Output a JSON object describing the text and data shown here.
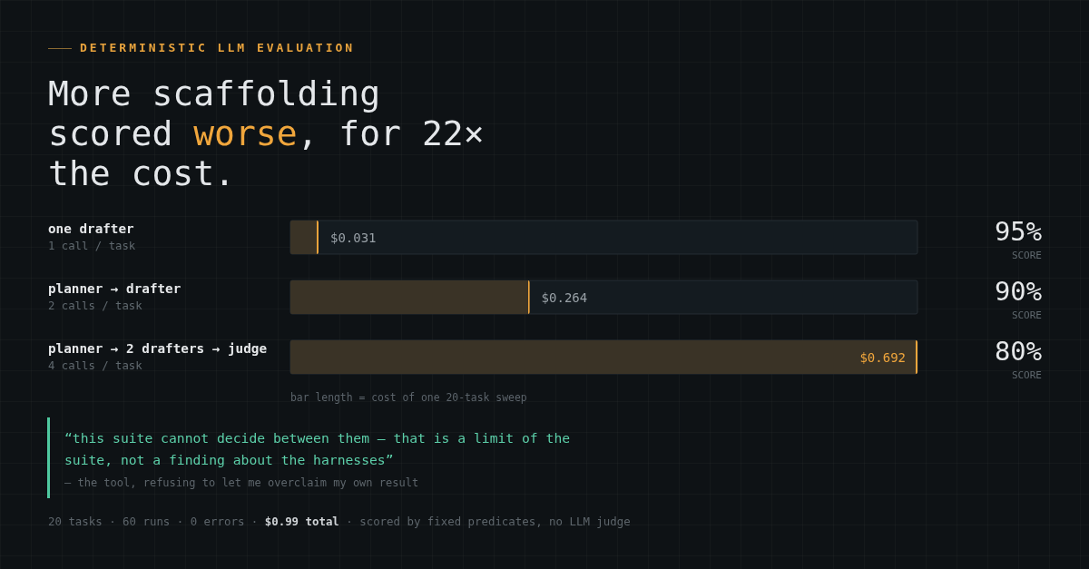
{
  "chart_data": {
    "type": "bar",
    "orientation": "horizontal",
    "subtitle": "DETERMINISTIC LLM EVALUATION",
    "title": "More scaffolding scored worse, for 22× the cost.",
    "categories": [
      "one drafter",
      "planner → drafter",
      "planner → 2 drafters → judge"
    ],
    "values": [
      0.031,
      0.264,
      0.692
    ],
    "value_labels": [
      "$0.031",
      "$0.264",
      "$0.692"
    ],
    "color": "#3a3326",
    "xlim": [
      0,
      0.692
    ],
    "xlabel": "bar length = cost of one 20-task sweep",
    "tick_labels": "y",
    "annotations": [
      "1 call / task",
      "95%",
      "SCORE",
      "2 calls / task",
      "90%",
      "SCORE",
      "4 calls / task",
      "80%",
      "SCORE",
      "“this suite cannot decide between them — that is a limit of the suite, not a finding about the harnesses”",
      "— the tool, refusing to let me overclaim my own result",
      "20 tasks · 60 runs · 0 errors · $0.99 total · scored by fixed predicates, no LLM judge"
    ]
  }
}
